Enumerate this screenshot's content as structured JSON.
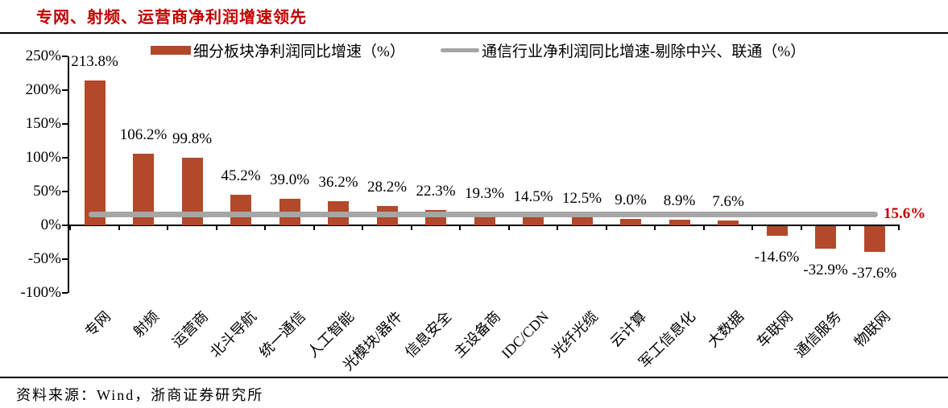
{
  "title": "专网、射频、运营商净利润增速领先",
  "source_note": "资料来源：Wind，浙商证券研究所",
  "colors": {
    "bar": "#B1492A",
    "industry_line": "#A6A6A6",
    "accent_red": "#C00000",
    "axis": "#000000"
  },
  "legend": {
    "items": [
      {
        "label": "细分板块净利润同比增速（%）",
        "type": "bar"
      },
      {
        "label": "通信行业净利润同比增速-剔除中兴、联通（%）",
        "type": "line"
      }
    ]
  },
  "chart_data": {
    "type": "bar",
    "title": "专网、射频、运营商净利润增速领先",
    "categories": [
      "专网",
      "射频",
      "运营商",
      "北斗导航",
      "统一通信",
      "人工智能",
      "光模块/器件",
      "信息安全",
      "主设备商",
      "IDC/CDN",
      "光纤光缆",
      "云计算",
      "军工信息化",
      "大数据",
      "车联网",
      "通信服务",
      "物联网"
    ],
    "series": [
      {
        "name": "细分板块净利润同比增速（%）",
        "type": "bar",
        "values": [
          213.8,
          106.2,
          99.8,
          45.2,
          39.0,
          36.2,
          28.2,
          22.3,
          19.3,
          14.5,
          12.5,
          9.0,
          8.9,
          7.6,
          -14.6,
          -32.9,
          -37.6
        ]
      },
      {
        "name": "通信行业净利润同比增速-剔除中兴、联通（%）",
        "type": "line",
        "constant_value": 15.6
      }
    ],
    "data_labels": [
      "213.8%",
      "106.2%",
      "99.8%",
      "45.2%",
      "39.0%",
      "36.2%",
      "28.2%",
      "22.3%",
      "19.3%",
      "14.5%",
      "12.5%",
      "9.0%",
      "8.9%",
      "7.6%",
      "-14.6%",
      "-32.9%",
      "-37.6%"
    ],
    "line_label": "15.6%",
    "y_axis": {
      "tick_labels": [
        "250%",
        "200%",
        "150%",
        "100%",
        "50%",
        "0%",
        "-50%",
        "-100%"
      ],
      "tick_values": [
        250,
        200,
        150,
        100,
        50,
        0,
        -50,
        -100
      ],
      "ylim": [
        -100,
        250
      ]
    },
    "grid": false,
    "legend_position": "top"
  }
}
